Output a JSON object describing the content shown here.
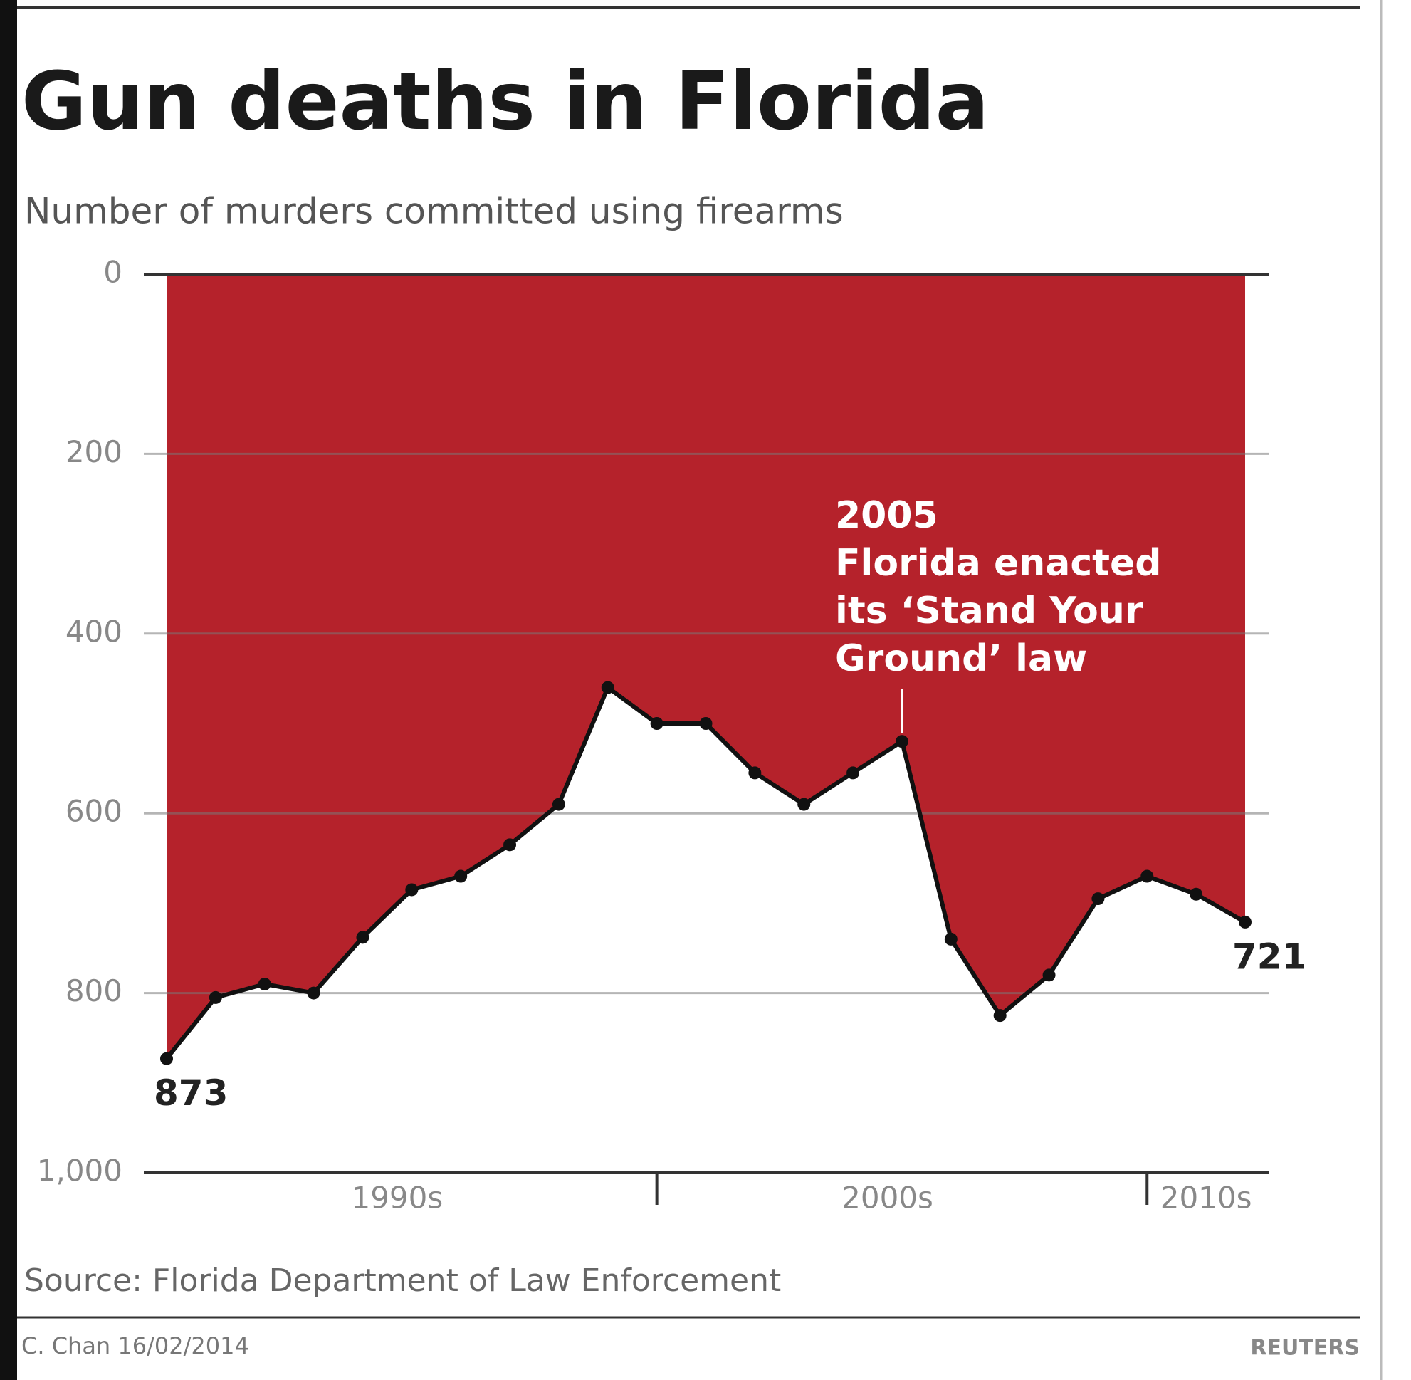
{
  "chart_data": {
    "type": "inverted-area-line",
    "title": "Gun deaths in Florida",
    "subtitle": "Number of murders committed using firearms",
    "y_inverted": true,
    "ylim": [
      0,
      1000
    ],
    "yticks": [
      0,
      200,
      400,
      600,
      800,
      {
        "value": 1000,
        "label": "1,000"
      }
    ],
    "grid": true,
    "fill_color": "#b5222b",
    "line_color": "#111111",
    "groups": [
      {
        "label": "1990s",
        "values": [
          873,
          805,
          790,
          800,
          738,
          685,
          670,
          635,
          590,
          460
        ]
      },
      {
        "label": "2000s",
        "values": [
          500,
          500,
          555,
          590,
          555,
          520,
          740,
          825,
          780,
          695
        ]
      },
      {
        "label": "2010s",
        "values": [
          670,
          690,
          721
        ]
      }
    ],
    "annotation": {
      "title": "2005",
      "lines": [
        "Florida enacted",
        "its ‘Stand Your",
        "Ground’ law"
      ]
    },
    "source": "Source: Florida Department of Law Enforcement",
    "credit": "C. Chan 16/02/2014",
    "brand": "REUTERS"
  }
}
